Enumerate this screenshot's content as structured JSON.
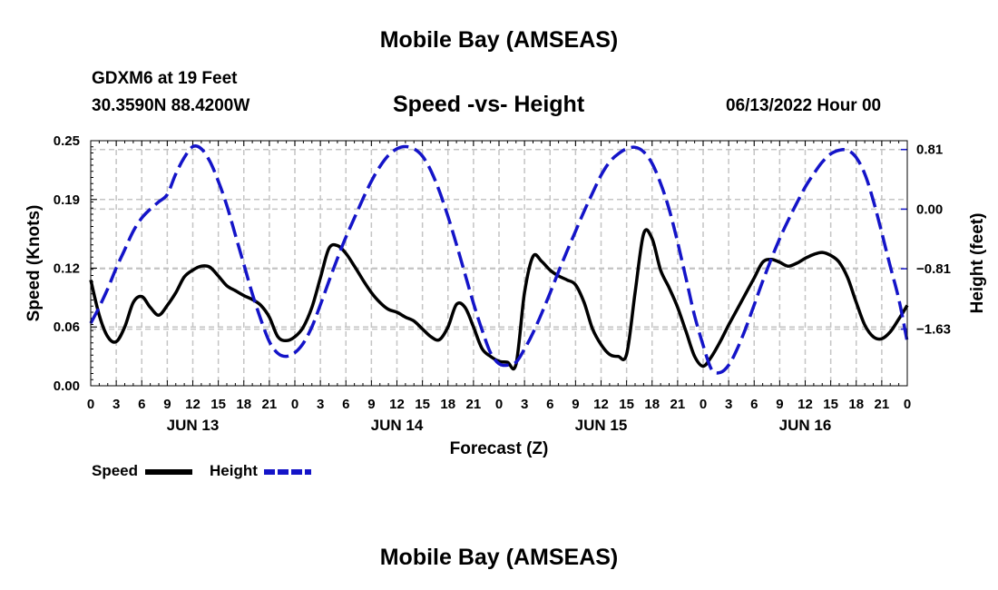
{
  "header": {
    "title": "Mobile Bay (AMSEAS)",
    "station": "GDXM6 at 19 Feet",
    "coordinates": "30.3590N  88.4200W",
    "datetime": "06/13/2022 Hour 00"
  },
  "footer": {
    "title": "Mobile Bay (AMSEAS)"
  },
  "colors": {
    "speed": "#000000",
    "height": "#1414c8",
    "grid": "#c4c4c4"
  },
  "chart_data": {
    "type": "line",
    "title": "Speed -vs- Height",
    "xlabel": "Forecast (Z)",
    "ylabel": "Speed (Knots)",
    "y2label": "Height (feet)",
    "xlim": [
      0,
      96
    ],
    "ylim": [
      0,
      0.25
    ],
    "y2lim": [
      -2.4,
      0.93
    ],
    "x_tick_labels": [
      "0",
      "3",
      "6",
      "9",
      "12",
      "15",
      "18",
      "21",
      "0",
      "3",
      "6",
      "9",
      "12",
      "15",
      "18",
      "21",
      "0",
      "3",
      "6",
      "9",
      "12",
      "15",
      "18",
      "21",
      "0",
      "3",
      "6",
      "9",
      "12",
      "15",
      "18",
      "21",
      "0"
    ],
    "day_labels": [
      {
        "x": 12,
        "label": "JUN 13"
      },
      {
        "x": 36,
        "label": "JUN 14"
      },
      {
        "x": 60,
        "label": "JUN 15"
      },
      {
        "x": 84,
        "label": "JUN 16"
      }
    ],
    "y_ticks": [
      0,
      0.06,
      0.12,
      0.19,
      0.25
    ],
    "y_tick_labels": [
      "0.00",
      "0.06",
      "0.12",
      "0.19",
      "0.25"
    ],
    "y2_ticks": [
      0.81,
      0.0,
      -0.81,
      -1.63
    ],
    "y2_tick_labels": [
      "0.81",
      "0.00",
      "−0.81",
      "−1.63"
    ],
    "legend": [
      "Speed",
      "Height"
    ],
    "series": [
      {
        "name": "Speed",
        "axis": "left",
        "style": "solid",
        "x": [
          0,
          1,
          2,
          3,
          4,
          5,
          6,
          7,
          8,
          9,
          10,
          11,
          12,
          13,
          14,
          15,
          16,
          17,
          18,
          19,
          20,
          21,
          22,
          23,
          24,
          25,
          26,
          27,
          28,
          29,
          30,
          31,
          32,
          33,
          34,
          35,
          36,
          37,
          38,
          39,
          40,
          41,
          42,
          43,
          44,
          45,
          46,
          47,
          48,
          49,
          50,
          51,
          52,
          53,
          54,
          55,
          56,
          57,
          58,
          59,
          60,
          61,
          62,
          63,
          64,
          65,
          66,
          67,
          68,
          69,
          70,
          71,
          72,
          73,
          74,
          75,
          76,
          77,
          78,
          79,
          80,
          81,
          82,
          83,
          84,
          85,
          86,
          87,
          88,
          89,
          90,
          91,
          92,
          93,
          94,
          95,
          96
        ],
        "values": [
          0.108,
          0.072,
          0.05,
          0.045,
          0.06,
          0.085,
          0.091,
          0.08,
          0.072,
          0.082,
          0.095,
          0.111,
          0.118,
          0.122,
          0.121,
          0.112,
          0.102,
          0.097,
          0.092,
          0.088,
          0.082,
          0.07,
          0.05,
          0.046,
          0.05,
          0.06,
          0.08,
          0.11,
          0.14,
          0.143,
          0.135,
          0.122,
          0.108,
          0.095,
          0.085,
          0.078,
          0.075,
          0.07,
          0.066,
          0.058,
          0.05,
          0.047,
          0.06,
          0.083,
          0.08,
          0.06,
          0.038,
          0.03,
          0.025,
          0.024,
          0.022,
          0.095,
          0.132,
          0.127,
          0.118,
          0.112,
          0.108,
          0.103,
          0.085,
          0.058,
          0.042,
          0.032,
          0.03,
          0.032,
          0.095,
          0.155,
          0.15,
          0.118,
          0.1,
          0.08,
          0.055,
          0.03,
          0.02,
          0.03,
          0.045,
          0.062,
          0.078,
          0.094,
          0.11,
          0.126,
          0.129,
          0.126,
          0.122,
          0.125,
          0.13,
          0.134,
          0.136,
          0.133,
          0.126,
          0.11,
          0.085,
          0.062,
          0.05,
          0.048,
          0.055,
          0.068,
          0.082
        ]
      },
      {
        "name": "Height",
        "axis": "right",
        "style": "dashed",
        "x": [
          0,
          1,
          2,
          3,
          4,
          5,
          6,
          7,
          8,
          9,
          10,
          11,
          12,
          13,
          14,
          15,
          16,
          17,
          18,
          19,
          20,
          21,
          22,
          23,
          24,
          25,
          26,
          27,
          28,
          29,
          30,
          31,
          32,
          33,
          34,
          35,
          36,
          37,
          38,
          39,
          40,
          41,
          42,
          43,
          44,
          45,
          46,
          47,
          48,
          49,
          50,
          51,
          52,
          53,
          54,
          55,
          56,
          57,
          58,
          59,
          60,
          61,
          62,
          63,
          64,
          65,
          66,
          67,
          68,
          69,
          70,
          71,
          72,
          73,
          74,
          75,
          76,
          77,
          78,
          79,
          80,
          81,
          82,
          83,
          84,
          85,
          86,
          87,
          88,
          89,
          90,
          91,
          92,
          93,
          94,
          95,
          96
        ],
        "values": [
          -1.55,
          -1.33,
          -1.08,
          -0.8,
          -0.55,
          -0.3,
          -0.12,
          0.0,
          0.1,
          0.2,
          0.48,
          0.7,
          0.85,
          0.82,
          0.65,
          0.38,
          0.05,
          -0.35,
          -0.75,
          -1.15,
          -1.5,
          -1.8,
          -1.96,
          -2.0,
          -1.95,
          -1.82,
          -1.6,
          -1.3,
          -0.98,
          -0.67,
          -0.38,
          -0.12,
          0.14,
          0.38,
          0.58,
          0.73,
          0.82,
          0.85,
          0.82,
          0.72,
          0.52,
          0.24,
          -0.1,
          -0.48,
          -0.88,
          -1.28,
          -1.64,
          -1.95,
          -2.1,
          -2.12,
          -2.08,
          -1.9,
          -1.68,
          -1.42,
          -1.14,
          -0.85,
          -0.57,
          -0.3,
          -0.03,
          0.22,
          0.46,
          0.64,
          0.75,
          0.82,
          0.84,
          0.78,
          0.62,
          0.35,
          0.0,
          -0.45,
          -0.95,
          -1.45,
          -1.85,
          -2.18,
          -2.22,
          -2.12,
          -1.9,
          -1.62,
          -1.3,
          -0.98,
          -0.68,
          -0.4,
          -0.15,
          0.08,
          0.3,
          0.48,
          0.64,
          0.75,
          0.8,
          0.8,
          0.7,
          0.48,
          0.12,
          -0.32,
          -0.78,
          -1.22,
          -1.8
        ]
      }
    ]
  }
}
